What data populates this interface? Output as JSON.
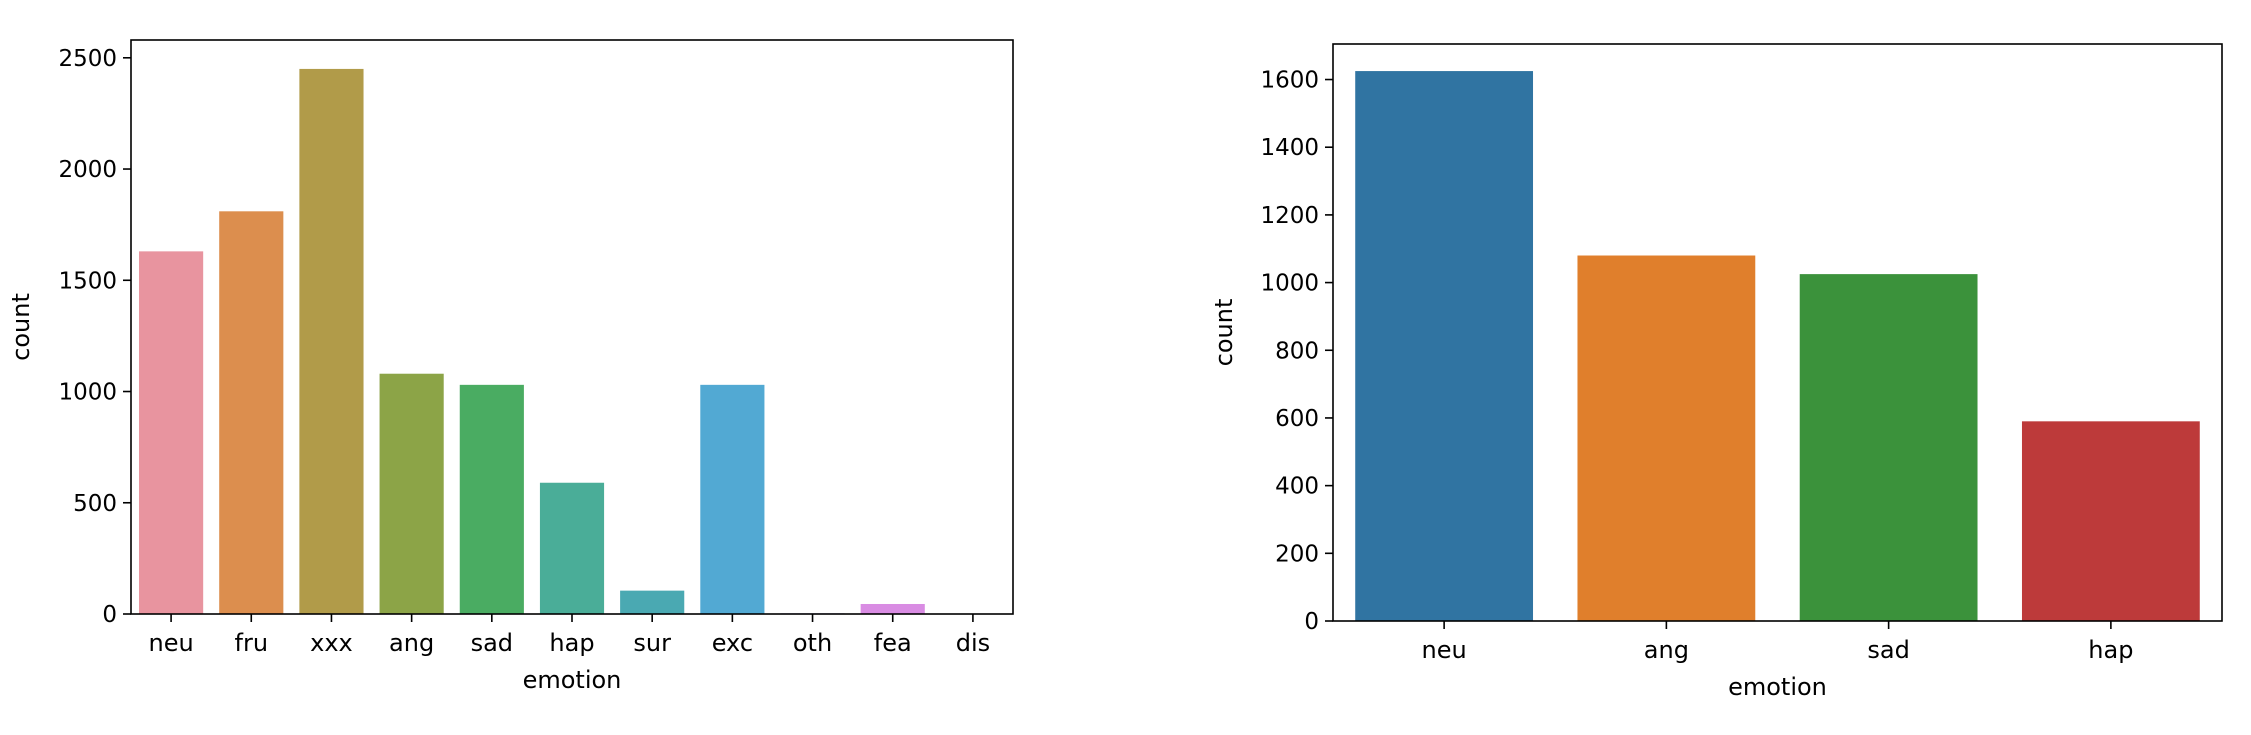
{
  "chart_data": [
    {
      "type": "bar",
      "title": "",
      "xlabel": "emotion",
      "ylabel": "count",
      "categories": [
        "neu",
        "fru",
        "xxx",
        "ang",
        "sad",
        "hap",
        "sur",
        "exc",
        "oth",
        "fea",
        "dis"
      ],
      "values": [
        1630,
        1810,
        2450,
        1080,
        1030,
        590,
        105,
        1030,
        3,
        45,
        2
      ],
      "colors": [
        "#e8949f",
        "#dc8e4e",
        "#b19b49",
        "#8ca447",
        "#4aac62",
        "#4aad98",
        "#4aa9b2",
        "#52a9d3",
        "#a6a2e0",
        "#d98ce3",
        "#e796c5"
      ],
      "ylim": [
        0,
        2580
      ],
      "yticks": [
        0,
        500,
        1000,
        1500,
        2000,
        2500
      ],
      "grid": false,
      "legend": "none"
    },
    {
      "type": "bar",
      "title": "",
      "xlabel": "emotion",
      "ylabel": "count",
      "categories": [
        "neu",
        "ang",
        "sad",
        "hap"
      ],
      "values": [
        1625,
        1080,
        1025,
        590
      ],
      "colors": [
        "#3074a2",
        "#e07f2c",
        "#3b923b",
        "#bd3a3a"
      ],
      "ylim": [
        0,
        1705
      ],
      "yticks": [
        0,
        200,
        400,
        600,
        800,
        1000,
        1200,
        1400,
        1600
      ],
      "grid": false,
      "legend": "none"
    }
  ]
}
